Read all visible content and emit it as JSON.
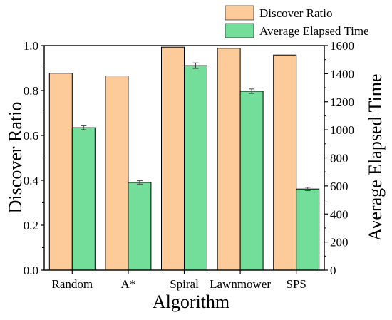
{
  "chart_data": {
    "type": "bar",
    "categories": [
      "Random",
      "A*",
      "Spiral",
      "Lawnmower",
      "SPS"
    ],
    "series": [
      {
        "name": "Discover Ratio",
        "axis": "left",
        "color": "#FDCB9A",
        "values": [
          0.877,
          0.865,
          0.993,
          0.988,
          0.958
        ]
      },
      {
        "name": "Average Elapsed Time",
        "axis": "right",
        "color": "#73DE9A",
        "values": [
          1015,
          625,
          1457,
          1275,
          578
        ],
        "error": [
          14,
          12,
          20,
          16,
          12
        ]
      }
    ],
    "xlabel": "Algorithm",
    "ylabel": "Discover Ratio",
    "ylabel_right": "Average Elapsed Time",
    "ylim": [
      0,
      1.0
    ],
    "ylim_right": [
      0,
      1600
    ],
    "yticks": [
      "0.0",
      "0.2",
      "0.4",
      "0.6",
      "0.8",
      "1.0"
    ],
    "yticks_right": [
      "0",
      "200",
      "400",
      "600",
      "800",
      "1000",
      "1200",
      "1400",
      "1600"
    ],
    "grid": false,
    "legend": "top-right"
  }
}
